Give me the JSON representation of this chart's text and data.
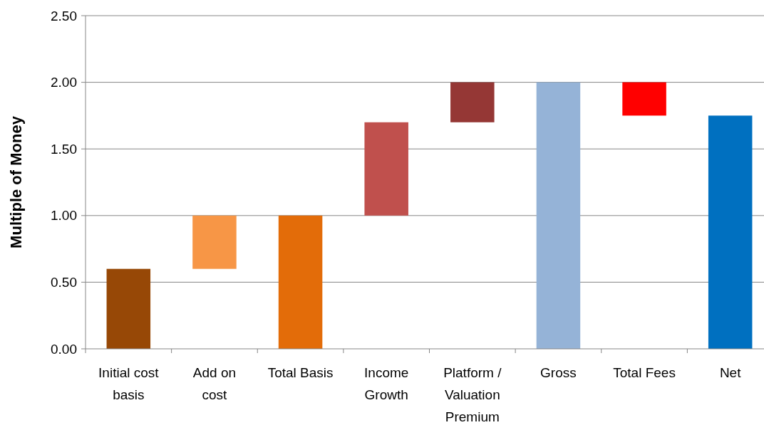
{
  "chart_data": {
    "type": "bar",
    "ylabel": "Multiple of Money",
    "categories": [
      "Initial cost\nbasis",
      "Add on\ncost",
      "Total Basis",
      "Income\nGrowth",
      "Platform /\nValuation\nPremium",
      "Gross",
      "Total Fees",
      "Net"
    ],
    "values": [
      0.6,
      0.4,
      1.0,
      0.7,
      0.3,
      2.0,
      0.25,
      1.75
    ],
    "base": [
      0,
      0.6,
      0,
      1.0,
      1.7,
      0,
      1.75,
      0
    ],
    "colors": [
      "#974806",
      "#f79646",
      "#e36c09",
      "#c0504d",
      "#953735",
      "#95b3d7",
      "#ff0000",
      "#0070c0"
    ],
    "ylim": [
      0,
      2.5
    ],
    "yticks": [
      {
        "value": 0,
        "label": "0.00"
      },
      {
        "value": 0.5,
        "label": "0.50"
      },
      {
        "value": 1,
        "label": "1.00"
      },
      {
        "value": 1.5,
        "label": "1.50"
      },
      {
        "value": 2,
        "label": "2.00"
      },
      {
        "value": 2.5,
        "label": "2.50"
      }
    ],
    "grid": "y"
  }
}
